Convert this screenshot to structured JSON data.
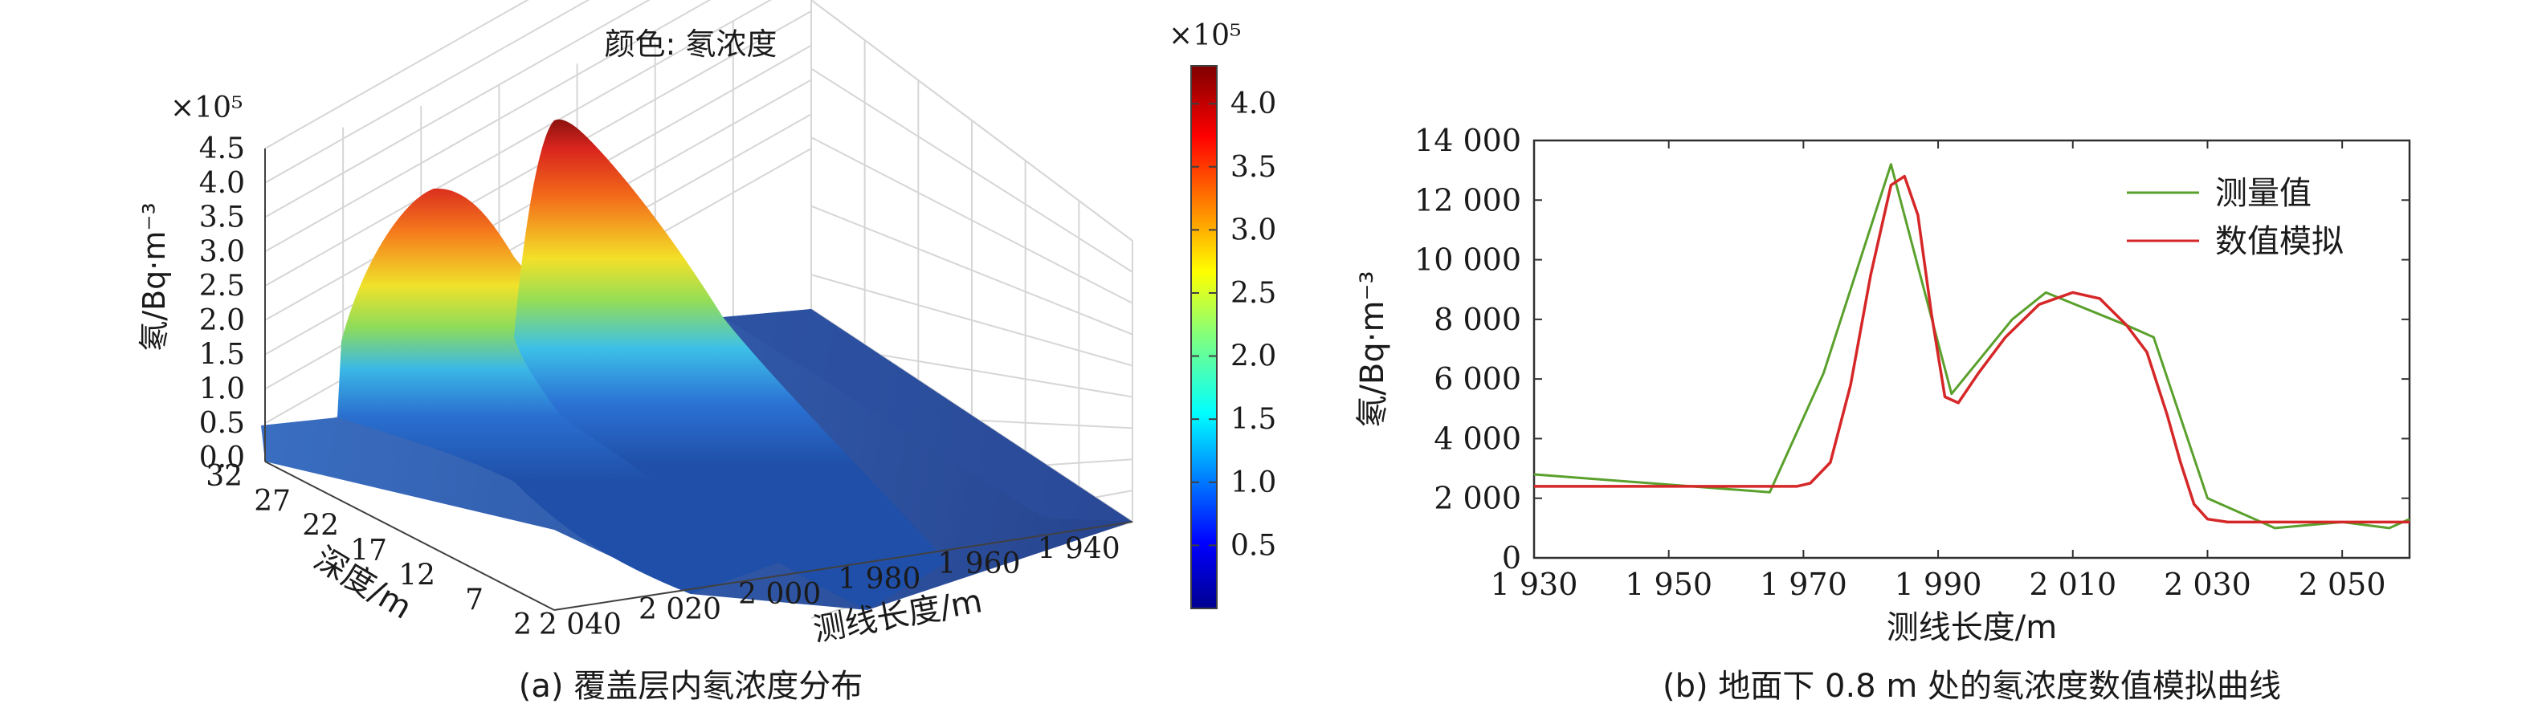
{
  "chart_data": [
    {
      "type": "surface",
      "title": "颜色: 氡浓度",
      "caption": "(a) 覆盖层内氡浓度分布",
      "zlabel": "氡/Bq·m⁻³",
      "z_multiplier": "×10⁵",
      "xlabel": "测线长度/m",
      "ylabel": "深度/m",
      "x_ticks": [
        "2 040",
        "2 020",
        "2 000",
        "1 980",
        "1 960",
        "1 940"
      ],
      "y_ticks": [
        "32",
        "27",
        "22",
        "17",
        "12",
        "7",
        "2"
      ],
      "z_ticks": [
        "0.0",
        "0.5",
        "1.0",
        "1.5",
        "2.0",
        "2.5",
        "3.0",
        "3.5",
        "4.0",
        "4.5"
      ],
      "zlim": [
        0,
        4.5
      ],
      "colorbar": {
        "multiplier": "×10⁵",
        "ticks": [
          "0.5",
          "1.0",
          "1.5",
          "2.0",
          "2.5",
          "3.0",
          "3.5",
          "4.0"
        ],
        "range": [
          0,
          4.3
        ],
        "colormap": "jet"
      },
      "peaks": [
        {
          "x": 2015,
          "max": 3.6
        },
        {
          "x": 1985,
          "max": 4.3
        }
      ]
    },
    {
      "type": "line",
      "caption": "(b) 地面下 0.8 m 处的氡浓度数值模拟曲线",
      "xlabel": "测线长度/m",
      "ylabel": "氡/Bq·m⁻³",
      "xlim": [
        1930,
        2060
      ],
      "ylim": [
        0,
        14000
      ],
      "x_ticks": [
        {
          "v": 1930,
          "t": "1 930"
        },
        {
          "v": 1950,
          "t": "1 950"
        },
        {
          "v": 1970,
          "t": "1 970"
        },
        {
          "v": 1990,
          "t": "1 990"
        },
        {
          "v": 2010,
          "t": "2 010"
        },
        {
          "v": 2030,
          "t": "2 030"
        },
        {
          "v": 2050,
          "t": "2 050"
        }
      ],
      "y_ticks": [
        {
          "v": 0,
          "t": "0"
        },
        {
          "v": 2000,
          "t": "2 000"
        },
        {
          "v": 4000,
          "t": "4 000"
        },
        {
          "v": 6000,
          "t": "6 000"
        },
        {
          "v": 8000,
          "t": "8 000"
        },
        {
          "v": 10000,
          "t": "10 000"
        },
        {
          "v": 12000,
          "t": "12 000"
        },
        {
          "v": 14000,
          "t": "14 000"
        }
      ],
      "legend_position": "top-right",
      "series": [
        {
          "name": "测量值",
          "color": "#5aa02c",
          "points": [
            [
              1930,
              2800
            ],
            [
              1965,
              2200
            ],
            [
              1973,
              6200
            ],
            [
              1983,
              13200
            ],
            [
              1992,
              5500
            ],
            [
              2001,
              8000
            ],
            [
              2006,
              8900
            ],
            [
              2018,
              7800
            ],
            [
              2022,
              7400
            ],
            [
              2030,
              2000
            ],
            [
              2040,
              1000
            ],
            [
              2050,
              1200
            ],
            [
              2057,
              1000
            ],
            [
              2060,
              1300
            ]
          ]
        },
        {
          "name": "数值模拟",
          "color": "#d62728",
          "points": [
            [
              1930,
              2400
            ],
            [
              1965,
              2400
            ],
            [
              1969,
              2400
            ],
            [
              1971,
              2500
            ],
            [
              1974,
              3200
            ],
            [
              1977,
              5800
            ],
            [
              1980,
              9500
            ],
            [
              1983,
              12500
            ],
            [
              1985,
              12800
            ],
            [
              1987,
              11500
            ],
            [
              1989,
              8200
            ],
            [
              1991,
              5400
            ],
            [
              1993,
              5200
            ],
            [
              1996,
              6200
            ],
            [
              2000,
              7400
            ],
            [
              2005,
              8500
            ],
            [
              2010,
              8900
            ],
            [
              2014,
              8700
            ],
            [
              2018,
              7800
            ],
            [
              2021,
              6900
            ],
            [
              2024,
              4800
            ],
            [
              2026,
              3200
            ],
            [
              2028,
              1800
            ],
            [
              2030,
              1300
            ],
            [
              2033,
              1200
            ],
            [
              2060,
              1200
            ]
          ]
        }
      ]
    }
  ]
}
